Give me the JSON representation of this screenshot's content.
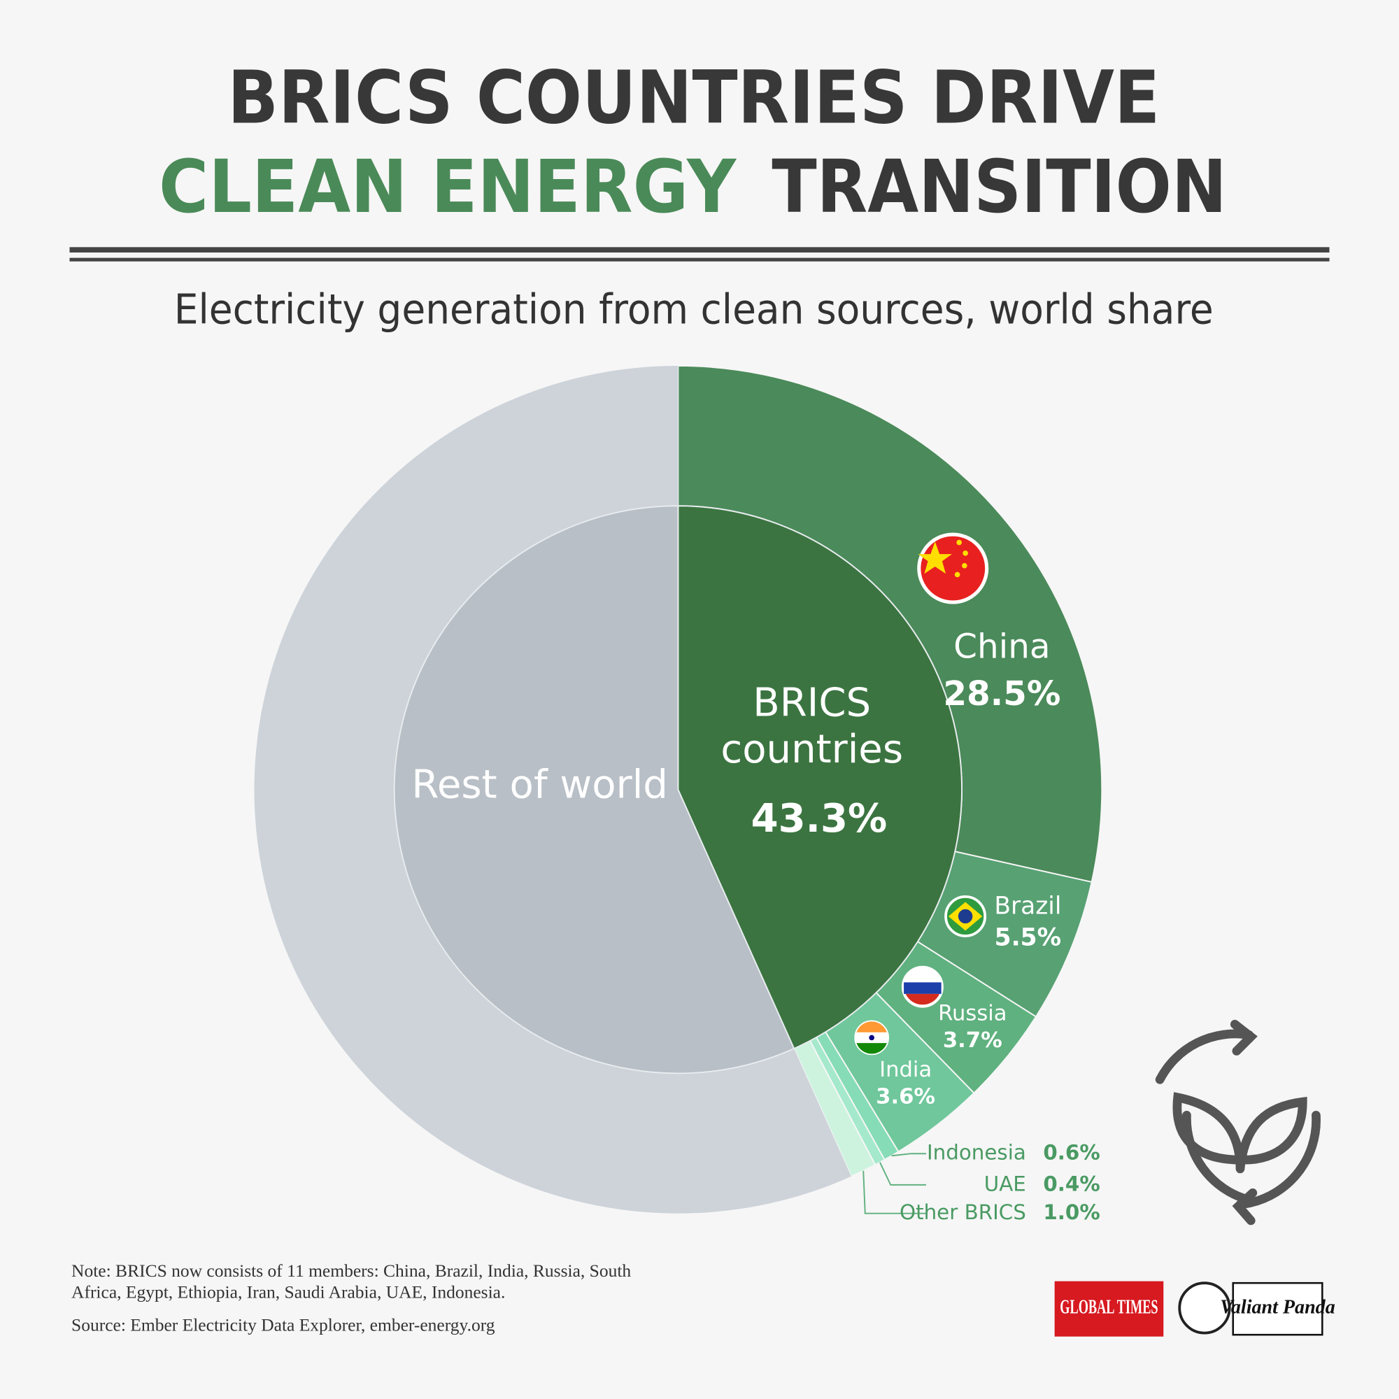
{
  "chart_data": {
    "type": "nested-donut",
    "title": {
      "line1": "BRICS COUNTRIES DRIVE",
      "highlight": "CLEAN ENERGY",
      "line2_rest": "TRANSITION"
    },
    "subtitle": "Electricity generation from clean sources, world share",
    "inner": {
      "categories": [
        "BRICS countries",
        "Rest of world"
      ],
      "values": [
        43.3,
        56.7
      ],
      "value_labels": [
        "43.3%",
        null
      ],
      "colors": [
        "#3b7440",
        "#b8bfc6"
      ]
    },
    "outer": {
      "categories": [
        "China",
        "Brazil",
        "Russia",
        "India",
        "Indonesia",
        "UAE",
        "Other BRICS"
      ],
      "values": [
        28.5,
        5.5,
        3.7,
        3.6,
        0.6,
        0.4,
        1.0
      ],
      "value_labels": [
        "28.5%",
        "5.5%",
        "3.7%",
        "3.6%",
        "0.6%",
        "0.4%",
        "1.0%"
      ],
      "colors": [
        "#4b8a5a",
        "#57a173",
        "#5fb17f",
        "#6fc79b",
        "#86dcb6",
        "#a4e9cb",
        "#cdf3df"
      ],
      "rest_color": "#cdd3d9"
    },
    "note": "Note: BRICS now consists of 11 members: China, Brazil, India, Russia, South Africa, Egypt, Ethiopia, Iran, Saudi Arabia, UAE, Indonesia.",
    "source": "Source: Ember Electricity Data Explorer, ember-energy.org",
    "logos": [
      "GLOBAL TIMES",
      "Valiant Panda"
    ]
  }
}
